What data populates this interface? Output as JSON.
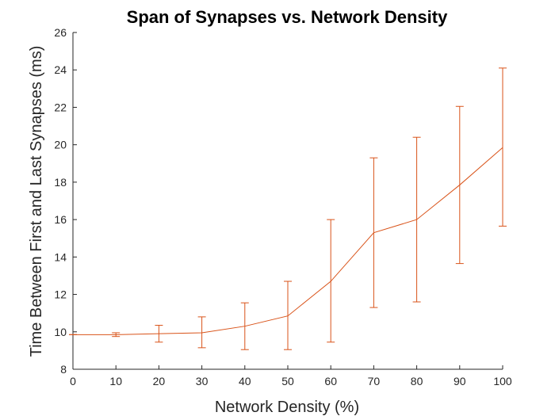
{
  "chart_data": {
    "type": "line",
    "title": "Span of Synapses vs. Network Density",
    "xlabel": "Network Density (%)",
    "ylabel": "Time Between First and Last Synapses (ms)",
    "xlim": [
      0,
      100
    ],
    "ylim": [
      8,
      26
    ],
    "xticks": [
      "0",
      "10",
      "20",
      "30",
      "40",
      "50",
      "60",
      "70",
      "80",
      "90",
      "100"
    ],
    "yticks": [
      "8",
      "10",
      "12",
      "14",
      "16",
      "18",
      "20",
      "22",
      "24",
      "26"
    ],
    "grid": false,
    "legend": "none",
    "color": "#d95319",
    "series": [
      {
        "x": [
          0,
          10,
          20,
          30,
          40,
          50,
          60,
          70,
          80,
          90,
          100
        ],
        "y": [
          9.85,
          9.85,
          9.9,
          9.95,
          10.3,
          10.85,
          12.7,
          15.3,
          16.0,
          17.85,
          19.85
        ],
        "err_low": [
          9.85,
          9.75,
          9.45,
          9.15,
          9.05,
          9.05,
          9.45,
          11.3,
          11.6,
          13.65,
          15.65
        ],
        "err_high": [
          9.85,
          9.95,
          10.35,
          10.8,
          11.55,
          12.7,
          16.0,
          19.3,
          20.4,
          22.05,
          24.1
        ]
      }
    ]
  }
}
